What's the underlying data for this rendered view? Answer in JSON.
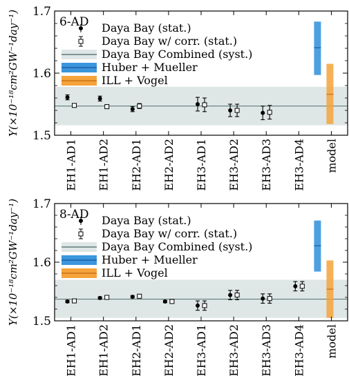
{
  "chart_data": [
    {
      "type": "scatter",
      "panel_label": "6-AD",
      "ylabel": "Y(×10⁻¹⁸cm²GW⁻¹day⁻¹)",
      "ylim": [
        1.5,
        1.7
      ],
      "yticks": [
        "1.5",
        "1.6",
        "1.7"
      ],
      "categories": [
        "EH1-AD1",
        "EH1-AD2",
        "EH2-AD1",
        "EH2-AD2",
        "EH3-AD1",
        "EH3-AD2",
        "EH3-AD3",
        "EH3-AD4",
        "model"
      ],
      "series": [
        {
          "name": "Daya Bay (stat.)",
          "marker": "filled-circle",
          "points": [
            {
              "x": "EH1-AD1",
              "y": 1.561,
              "err": 0.004
            },
            {
              "x": "EH1-AD2",
              "y": 1.559,
              "err": 0.004
            },
            {
              "x": "EH2-AD1",
              "y": 1.542,
              "err": 0.004
            },
            {
              "x": "EH3-AD1",
              "y": 1.55,
              "err": 0.011
            },
            {
              "x": "EH3-AD2",
              "y": 1.54,
              "err": 0.01
            },
            {
              "x": "EH3-AD3",
              "y": 1.536,
              "err": 0.011
            }
          ]
        },
        {
          "name": "Daya Bay w/ corr. (stat.)",
          "marker": "open-square",
          "points": [
            {
              "x": "EH1-AD1",
              "y": 1.548,
              "err": 0.003
            },
            {
              "x": "EH1-AD2",
              "y": 1.546,
              "err": 0.003
            },
            {
              "x": "EH2-AD1",
              "y": 1.547,
              "err": 0.004
            },
            {
              "x": "EH3-AD1",
              "y": 1.549,
              "err": 0.011
            },
            {
              "x": "EH3-AD2",
              "y": 1.54,
              "err": 0.01
            },
            {
              "x": "EH3-AD3",
              "y": 1.537,
              "err": 0.011
            }
          ]
        }
      ],
      "combined": {
        "name": "Daya Bay Combined (syst.)",
        "center": 1.547,
        "low": 1.516,
        "high": 1.578
      },
      "models": [
        {
          "name": "Huber + Mueller",
          "center": 1.641,
          "low": 1.597,
          "high": 1.683,
          "color": "#3a96dd"
        },
        {
          "name": "ILL + Vogel",
          "center": 1.566,
          "low": 1.518,
          "high": 1.615,
          "color": "#f5a33a"
        }
      ],
      "colors": {
        "combined_band": "#dfe6e6",
        "combined_line": "#5f7a7a"
      }
    },
    {
      "type": "scatter",
      "panel_label": "8-AD",
      "ylabel": "Y(×10⁻¹⁸cm²GW⁻¹day⁻¹)",
      "ylim": [
        1.5,
        1.7
      ],
      "yticks": [
        "1.5",
        "1.6",
        "1.7"
      ],
      "categories": [
        "EH1-AD1",
        "EH1-AD2",
        "EH2-AD1",
        "EH2-AD2",
        "EH3-AD1",
        "EH3-AD2",
        "EH3-AD3",
        "EH3-AD4",
        "model"
      ],
      "series": [
        {
          "name": "Daya Bay (stat.)",
          "marker": "filled-circle",
          "points": [
            {
              "x": "EH1-AD1",
              "y": 1.533,
              "err": 0.002
            },
            {
              "x": "EH1-AD2",
              "y": 1.539,
              "err": 0.002
            },
            {
              "x": "EH2-AD1",
              "y": 1.541,
              "err": 0.002
            },
            {
              "x": "EH2-AD2",
              "y": 1.533,
              "err": 0.002
            },
            {
              "x": "EH3-AD1",
              "y": 1.526,
              "err": 0.008
            },
            {
              "x": "EH3-AD2",
              "y": 1.544,
              "err": 0.008
            },
            {
              "x": "EH3-AD3",
              "y": 1.538,
              "err": 0.008
            },
            {
              "x": "EH3-AD4",
              "y": 1.559,
              "err": 0.008
            }
          ]
        },
        {
          "name": "Daya Bay w/ corr. (stat.)",
          "marker": "open-square",
          "points": [
            {
              "x": "EH1-AD1",
              "y": 1.534,
              "err": 0.002
            },
            {
              "x": "EH1-AD2",
              "y": 1.54,
              "err": 0.002
            },
            {
              "x": "EH2-AD1",
              "y": 1.542,
              "err": 0.002
            },
            {
              "x": "EH2-AD2",
              "y": 1.533,
              "err": 0.002
            },
            {
              "x": "EH3-AD1",
              "y": 1.526,
              "err": 0.008
            },
            {
              "x": "EH3-AD2",
              "y": 1.544,
              "err": 0.008
            },
            {
              "x": "EH3-AD3",
              "y": 1.538,
              "err": 0.008
            },
            {
              "x": "EH3-AD4",
              "y": 1.559,
              "err": 0.008
            }
          ]
        }
      ],
      "combined": {
        "name": "Daya Bay Combined (syst.)",
        "center": 1.537,
        "low": 1.505,
        "high": 1.57
      },
      "models": [
        {
          "name": "Huber + Mueller",
          "center": 1.628,
          "low": 1.584,
          "high": 1.671,
          "color": "#3a96dd"
        },
        {
          "name": "ILL + Vogel",
          "center": 1.554,
          "low": 1.505,
          "high": 1.603,
          "color": "#f5a33a"
        }
      ],
      "colors": {
        "combined_band": "#dfe6e6",
        "combined_line": "#5f7a7a"
      }
    }
  ]
}
